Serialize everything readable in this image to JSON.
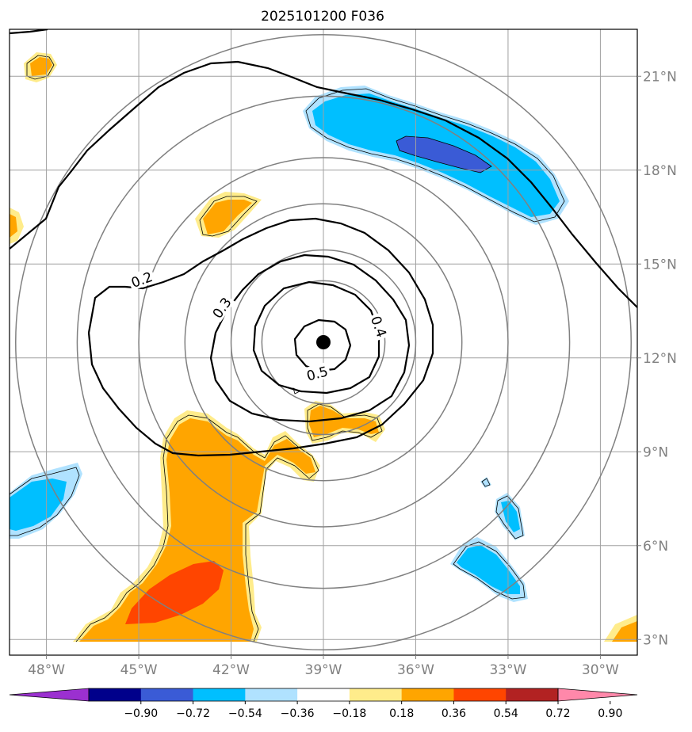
{
  "chart_data": {
    "type": "contour-map",
    "title": "2025101200 F036",
    "x_axis": {
      "range": [
        -49.2,
        -28.8
      ],
      "ticks": [
        -48,
        -45,
        -42,
        -39,
        -36,
        -33,
        -30
      ],
      "tick_labels": [
        "48°W",
        "45°W",
        "42°W",
        "39°W",
        "36°W",
        "33°W",
        "30°W"
      ]
    },
    "y_axis": {
      "range": [
        2.5,
        22.5
      ],
      "ticks": [
        3,
        6,
        9,
        12,
        15,
        18,
        21
      ],
      "tick_labels": [
        "3°N",
        "6°N",
        "9°N",
        "12°N",
        "15°N",
        "18°N",
        "21°N"
      ],
      "position": "right"
    },
    "grid": true,
    "center": {
      "lon": -39.0,
      "lat": 12.5,
      "marker": "filled-circle"
    },
    "range_rings_deg": [
      2,
      3,
      4.5,
      6,
      8,
      10
    ],
    "contour_labels": [
      {
        "text": "0.2",
        "lon": -44.9,
        "lat": 14.5
      },
      {
        "text": "0.3",
        "lon": -42.3,
        "lat": 13.6
      },
      {
        "text": "0.4",
        "lon": -37.2,
        "lat": 13.0
      },
      {
        "text": "0.5",
        "lon": -39.2,
        "lat": 11.5
      }
    ],
    "contour_levels": [
      0.2,
      0.3,
      0.4,
      0.5
    ],
    "fill_regions": [
      {
        "color": "orange",
        "region": "southwest plume",
        "sign": "positive"
      },
      {
        "color": "red-orange",
        "region": "southwest core",
        "sign": "positive"
      },
      {
        "color": "blue",
        "region": "northeast band",
        "sign": "negative"
      },
      {
        "color": "dark-blue",
        "region": "northeast core",
        "sign": "negative"
      },
      {
        "color": "blue",
        "region": "west edge",
        "sign": "negative"
      },
      {
        "color": "blue",
        "region": "southeast patches",
        "sign": "negative"
      },
      {
        "color": "orange",
        "region": "small patches",
        "sign": "positive"
      }
    ],
    "colorbar": {
      "orientation": "horizontal",
      "extend": "both",
      "colors": [
        "#9b30d0",
        "#00008b",
        "#3a5bd6",
        "#00bfff",
        "#b0e2ff",
        "#ffffff",
        "#ffec8b",
        "#ffa500",
        "#ff4500",
        "#b22222",
        "#ff88aa"
      ],
      "tick_values": [
        -0.9,
        -0.72,
        -0.54,
        -0.36,
        -0.18,
        0.18,
        0.36,
        0.54,
        0.72,
        0.9
      ],
      "tick_labels": [
        "−0.90",
        "−0.72",
        "−0.54",
        "−0.36",
        "−0.18",
        "0.18",
        "0.36",
        "0.54",
        "0.72",
        "0.90"
      ]
    }
  }
}
